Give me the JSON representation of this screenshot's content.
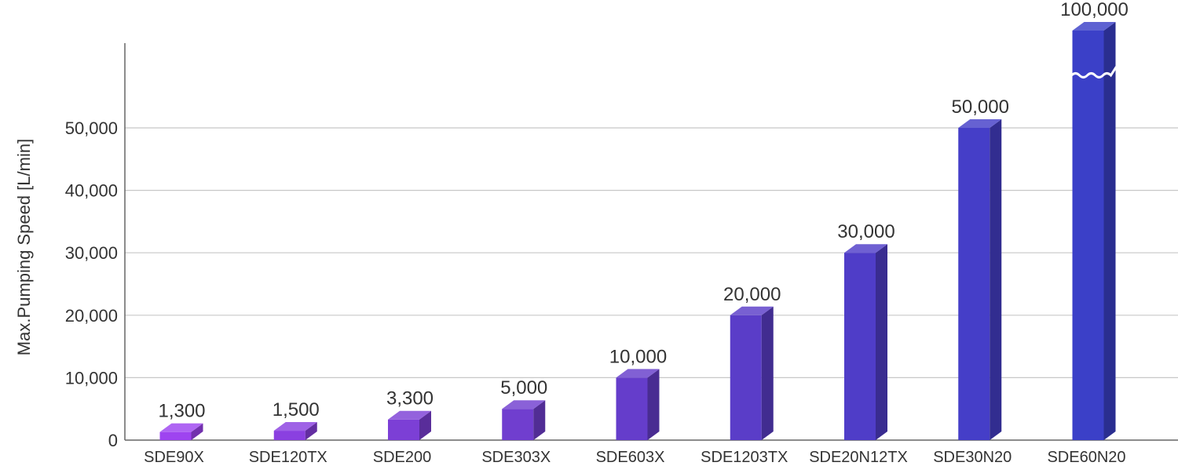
{
  "chart_data": {
    "type": "bar",
    "ylabel": "Max.Pumping Speed [L/min]",
    "ylim": [
      0,
      60000
    ],
    "yticks": [
      0,
      10000,
      20000,
      30000,
      40000,
      50000
    ],
    "ytick_labels": [
      "0",
      "10,000",
      "20,000",
      "30,000",
      "40,000",
      "50,000"
    ],
    "grid": true,
    "categories": [
      "SDE90X",
      "SDE120TX",
      "SDE200",
      "SDE303X",
      "SDE603X",
      "SDE1203TX",
      "SDE20N12TX",
      "SDE30N20",
      "SDE60N20"
    ],
    "values": [
      1300,
      1500,
      3300,
      5000,
      10000,
      20000,
      30000,
      50000,
      100000
    ],
    "data_labels": [
      "1,300",
      "1,500",
      "3,300",
      "5,000",
      "10,000",
      "20,000",
      "30,000",
      "50,000",
      "100,000"
    ],
    "axis_break": "SDE60N20",
    "colors": {
      "front": [
        "#9e44f0",
        "#8a40e0",
        "#7c3fd6",
        "#703ecf",
        "#653dcb",
        "#5a3dc8",
        "#4f3dc8",
        "#453ec8",
        "#3b40c8"
      ],
      "axis": "#666666",
      "grid": "#c8c8c8"
    }
  }
}
